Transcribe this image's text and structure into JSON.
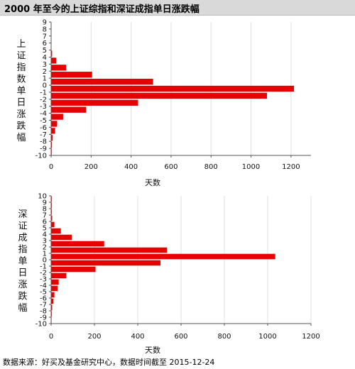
{
  "page": {
    "title": "2000 年至今的上证综指和深证成指单日涨跌幅",
    "source_note": "数据来源：好买及基金研究中心，数据时间截至 2015-12-24"
  },
  "colors": {
    "bar": "#e60000",
    "axis": "#555555",
    "grid": "#e0e0e0"
  },
  "chart_data": [
    {
      "type": "bar",
      "orientation": "horizontal",
      "ylabel": "上证指数单日涨跌幅",
      "xlabel": "天数",
      "xlim": [
        0,
        1300
      ],
      "xticks": [
        0,
        200,
        400,
        600,
        800,
        1000,
        1200
      ],
      "ylim": [
        -10,
        9
      ],
      "yticks": [
        9,
        8,
        7,
        6,
        5,
        4,
        3,
        2,
        1,
        0,
        -1,
        -2,
        -3,
        -4,
        -5,
        -6,
        -7,
        -8,
        -9,
        -10
      ],
      "grid": true,
      "categories": [
        9,
        8,
        7,
        6,
        5,
        4,
        3,
        2,
        1,
        0,
        -1,
        -2,
        -3,
        -4,
        -5,
        -6,
        -7,
        -8,
        -9
      ],
      "values": [
        0,
        0,
        0,
        0,
        5,
        25,
        75,
        205,
        510,
        1215,
        1080,
        435,
        175,
        60,
        30,
        20,
        8,
        4,
        3
      ]
    },
    {
      "type": "bar",
      "orientation": "horizontal",
      "ylabel": "深证成指单日涨跌幅",
      "xlabel": "天数",
      "xlim": [
        0,
        1200
      ],
      "xticks": [
        0,
        200,
        400,
        600,
        800,
        1000,
        1200
      ],
      "ylim": [
        -10,
        10
      ],
      "yticks": [
        10,
        9,
        8,
        7,
        6,
        5,
        4,
        3,
        2,
        1,
        0,
        -1,
        -2,
        -3,
        -4,
        -5,
        -6,
        -7,
        -8,
        -9,
        -10
      ],
      "grid": true,
      "categories": [
        10,
        9,
        8,
        7,
        6,
        5,
        4,
        3,
        2,
        1,
        0,
        -1,
        -2,
        -3,
        -4,
        -5,
        -6,
        -7,
        -8,
        -9
      ],
      "values": [
        3,
        3,
        3,
        5,
        15,
        45,
        95,
        245,
        535,
        1035,
        505,
        205,
        70,
        35,
        30,
        15,
        10,
        5,
        3,
        2
      ]
    }
  ]
}
